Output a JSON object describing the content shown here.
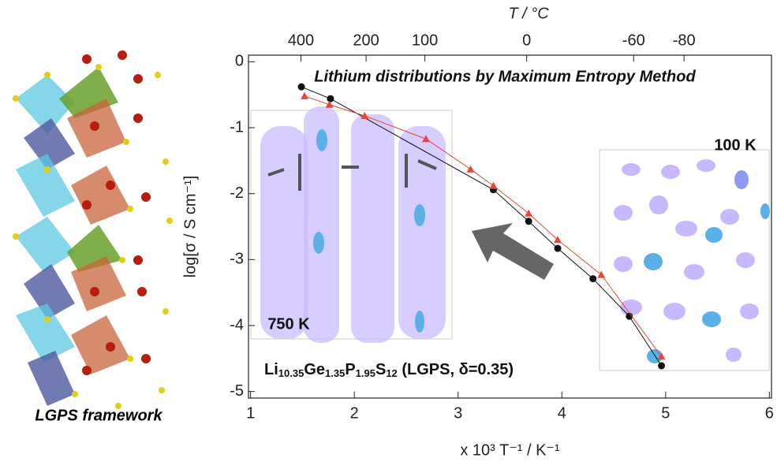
{
  "chart_data": {
    "type": "scatter",
    "xlabel": "x 10³ T⁻¹ / K⁻¹",
    "ylabel": "log[σ / S cm⁻¹]",
    "x2label": "T / °C",
    "xlim": [
      0.98,
      6.02
    ],
    "ylim": [
      -5.1,
      0.1
    ],
    "xticks": [
      1,
      2,
      3,
      4,
      5,
      6
    ],
    "yticks": [
      0,
      -1,
      -2,
      -3,
      -4,
      -5
    ],
    "x2ticks": [
      400,
      200,
      100,
      0,
      -60,
      -80
    ],
    "annotations": [
      "Lithium distributions by Maximum Entropy Method",
      "100 K",
      "750 K"
    ],
    "formula_parts": [
      "Li",
      "10.35",
      "Ge",
      "1.35",
      "P",
      "1.95",
      "S",
      "12",
      " (LGPS, δ=0.35)"
    ],
    "series": [
      {
        "color": "#111111",
        "marker": "circle",
        "x": [
          1.49,
          1.77,
          3.34,
          3.68,
          3.96,
          4.3,
          4.65,
          4.96
        ],
        "values": [
          -0.38,
          -0.56,
          -1.94,
          -2.42,
          -2.83,
          -3.29,
          -3.86,
          -4.61
        ]
      },
      {
        "color": "#e8463a",
        "marker": "triangle",
        "x": [
          1.52,
          1.76,
          2.1,
          2.69,
          3.12,
          3.34,
          3.68,
          3.96,
          4.38,
          4.96
        ],
        "values": [
          -0.52,
          -0.65,
          -0.82,
          -1.17,
          -1.63,
          -1.88,
          -2.3,
          -2.7,
          -3.23,
          -4.47
        ]
      }
    ]
  },
  "figure": {
    "framework_label": "LGPS framework"
  }
}
